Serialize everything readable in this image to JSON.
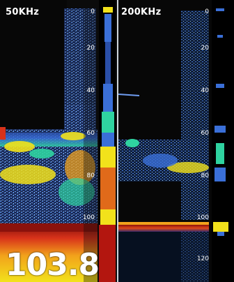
{
  "left_pane": {
    "frequency_label": "50KHz",
    "depth_ticks": [
      "0",
      "20",
      "40",
      "60",
      "80",
      "100"
    ],
    "ascope_icon": "a-scope-bar"
  },
  "right_pane": {
    "frequency_label": "200KHz",
    "depth_ticks": [
      "0",
      "20",
      "40",
      "60",
      "80",
      "100",
      "120"
    ],
    "ascope_icon": "a-scope-bar"
  },
  "depth_readout": "103.8",
  "colors": {
    "background": "#0b0b0b",
    "weak_echo": "#3a6fd8",
    "medium_echo": "#2fd3a0",
    "strong_echo": "#f2e21b",
    "very_strong_echo": "#e0481a",
    "bottom_echo": "#b3160f"
  }
}
